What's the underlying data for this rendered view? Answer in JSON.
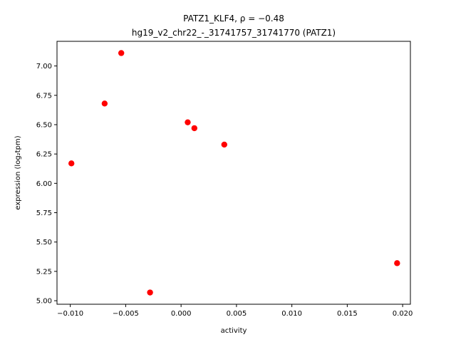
{
  "chart_data": {
    "type": "scatter",
    "title_line1": "PATZ1_KLF4, ρ = −0.48",
    "title_line2": "hg19_v2_chr22_-_31741757_31741770 (PATZ1)",
    "xlabel": "activity",
    "ylabel": "expression (log₂tpm)",
    "xlim": [
      -0.0112,
      0.0207
    ],
    "ylim": [
      4.97,
      7.21
    ],
    "xticks": [
      -0.01,
      -0.005,
      0.0,
      0.005,
      0.01,
      0.015,
      0.02
    ],
    "xtick_labels": [
      "−0.010",
      "−0.005",
      "0.000",
      "0.005",
      "0.010",
      "0.015",
      "0.020"
    ],
    "yticks": [
      5.0,
      5.25,
      5.5,
      5.75,
      6.0,
      6.25,
      6.5,
      6.75,
      7.0
    ],
    "ytick_labels": [
      "5.00",
      "5.25",
      "5.50",
      "5.75",
      "6.00",
      "6.25",
      "6.50",
      "6.75",
      "7.00"
    ],
    "marker_color": "#ff0000",
    "grid": false,
    "points": [
      {
        "x": -0.0099,
        "y": 6.17
      },
      {
        "x": -0.0069,
        "y": 6.68
      },
      {
        "x": -0.0054,
        "y": 7.11
      },
      {
        "x": -0.0028,
        "y": 5.07
      },
      {
        "x": 0.0006,
        "y": 6.52
      },
      {
        "x": 0.0012,
        "y": 6.47
      },
      {
        "x": 0.0039,
        "y": 6.33
      },
      {
        "x": 0.0195,
        "y": 5.32
      }
    ]
  }
}
